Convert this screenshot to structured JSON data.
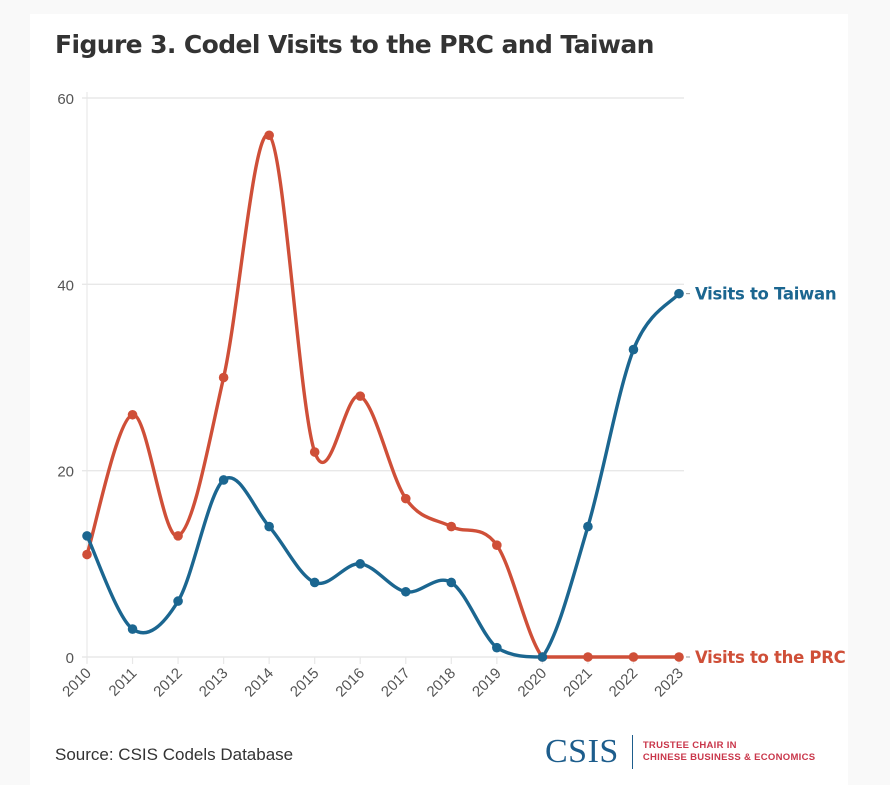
{
  "title": "Figure 3. Codel Visits to the PRC and Taiwan",
  "source": "Source: CSIS Codels Database",
  "logo": {
    "wordmark": "CSIS",
    "line1": "TRUSTEE CHAIR IN",
    "line2": "CHINESE BUSINESS & ECONOMICS"
  },
  "colors": {
    "taiwan": "#1b6690",
    "prc": "#cf4f38",
    "grid": "#e8e8e8",
    "tick_text": "#555555"
  },
  "chart_data": {
    "type": "line",
    "title": "Figure 3. Codel Visits to the PRC and Taiwan",
    "xlabel": "",
    "ylabel": "",
    "x": [
      "2010",
      "2011",
      "2012",
      "2013",
      "2014",
      "2015",
      "2016",
      "2017",
      "2018",
      "2019",
      "2020",
      "2021",
      "2022",
      "2023"
    ],
    "ylim": [
      0,
      60
    ],
    "yticks": [
      0,
      20,
      40,
      60
    ],
    "grid": true,
    "legend": "direct-labels-right",
    "series": [
      {
        "name": "Visits to Taiwan",
        "color": "#1b6690",
        "values": [
          13,
          3,
          6,
          19,
          14,
          8,
          10,
          7,
          8,
          1,
          0,
          14,
          33,
          39
        ]
      },
      {
        "name": "Visits to the PRC",
        "color": "#cf4f38",
        "values": [
          11,
          26,
          13,
          30,
          56,
          22,
          28,
          17,
          14,
          12,
          0,
          0,
          0,
          0
        ]
      }
    ]
  }
}
